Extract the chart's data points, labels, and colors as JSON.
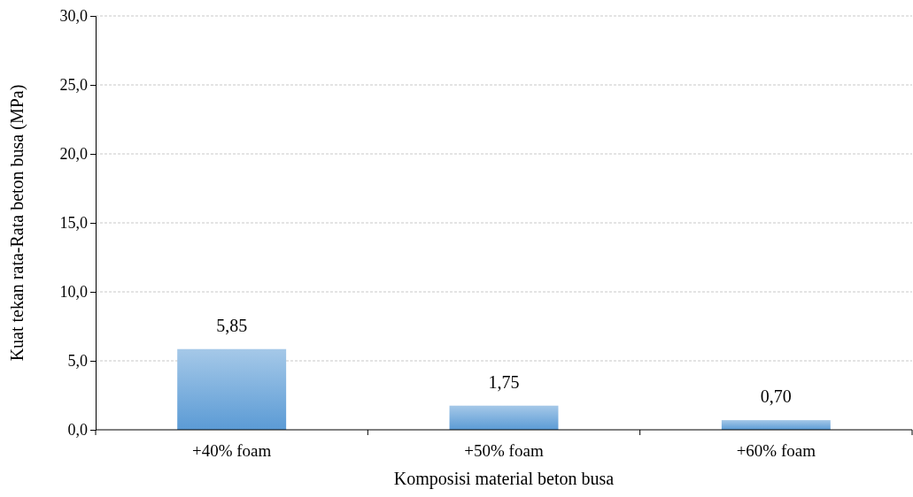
{
  "chart_data": {
    "type": "bar",
    "xlabel": "Komposisi material beton busa",
    "ylabel": "Kuat tekan rata-Rata beton busa (MPa)",
    "categories": [
      "+40% foam",
      "+50% foam",
      "+60% foam"
    ],
    "values": [
      5.85,
      1.75,
      0.7
    ],
    "value_labels": [
      "5,85",
      "1,75",
      "0,70"
    ],
    "color": "#5b9bd5",
    "ylim": [
      0,
      30
    ],
    "yticks": [
      {
        "value": 0,
        "label": "0,0"
      },
      {
        "value": 5,
        "label": "5,0"
      },
      {
        "value": 10,
        "label": "10,0"
      },
      {
        "value": 15,
        "label": "15,0"
      },
      {
        "value": 20,
        "label": "20,0"
      },
      {
        "value": 25,
        "label": "25,0"
      },
      {
        "value": 30,
        "label": "30,0"
      }
    ],
    "grid": "y"
  }
}
